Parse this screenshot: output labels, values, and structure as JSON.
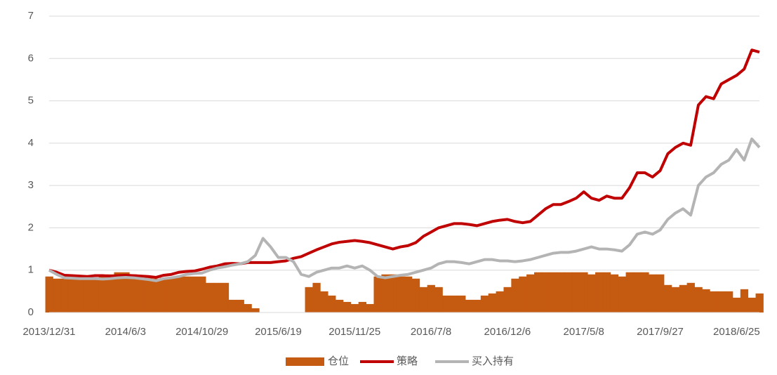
{
  "chart_data": {
    "type": "bar",
    "categories": [
      "2013/12/31",
      null,
      null,
      null,
      null,
      null,
      null,
      null,
      null,
      null,
      "2014/6/3",
      null,
      null,
      null,
      null,
      null,
      null,
      null,
      null,
      null,
      "2014/10/29",
      null,
      null,
      null,
      null,
      null,
      null,
      null,
      null,
      null,
      "2015/6/19",
      null,
      null,
      null,
      null,
      null,
      null,
      null,
      null,
      null,
      "2015/11/25",
      null,
      null,
      null,
      null,
      null,
      null,
      null,
      null,
      null,
      "2016/7/8",
      null,
      null,
      null,
      null,
      null,
      null,
      null,
      null,
      null,
      "2016/12/6",
      null,
      null,
      null,
      null,
      null,
      null,
      null,
      null,
      null,
      "2017/5/8",
      null,
      null,
      null,
      null,
      null,
      null,
      null,
      null,
      null,
      "2017/9/27",
      null,
      null,
      null,
      null,
      null,
      null,
      null,
      null,
      null,
      "2018/6/25",
      null,
      null,
      null
    ],
    "series": [
      {
        "name": "仓位",
        "type": "bar",
        "color": "#c55a11",
        "values": [
          0.85,
          0.8,
          0.8,
          0.8,
          0.8,
          0.85,
          0.8,
          0.85,
          0.9,
          0.95,
          0.95,
          0.9,
          0.82,
          0.82,
          0.8,
          0.82,
          0.82,
          0.85,
          0.85,
          0.85,
          0.85,
          0.7,
          0.7,
          0.7,
          0.3,
          0.3,
          0.2,
          0.1,
          0,
          0,
          0,
          0,
          0,
          0,
          0.6,
          0.7,
          0.5,
          0.4,
          0.3,
          0.25,
          0.2,
          0.25,
          0.2,
          0.85,
          0.9,
          0.9,
          0.85,
          0.85,
          0.8,
          0.6,
          0.65,
          0.6,
          0.4,
          0.4,
          0.4,
          0.3,
          0.3,
          0.4,
          0.45,
          0.5,
          0.6,
          0.8,
          0.85,
          0.9,
          0.95,
          0.95,
          0.95,
          0.95,
          0.95,
          0.95,
          0.95,
          0.9,
          0.95,
          0.95,
          0.9,
          0.85,
          0.95,
          0.95,
          0.95,
          0.9,
          0.9,
          0.65,
          0.6,
          0.65,
          0.7,
          0.6,
          0.55,
          0.5,
          0.5,
          0.5,
          0.35,
          0.55,
          0.35,
          0.45
        ]
      },
      {
        "name": "策略",
        "type": "line",
        "color": "#c00000",
        "values": [
          1.0,
          0.95,
          0.88,
          0.87,
          0.86,
          0.85,
          0.87,
          0.87,
          0.86,
          0.87,
          0.88,
          0.87,
          0.86,
          0.85,
          0.83,
          0.88,
          0.9,
          0.95,
          0.97,
          0.98,
          1.02,
          1.07,
          1.1,
          1.15,
          1.16,
          1.15,
          1.18,
          1.18,
          1.18,
          1.18,
          1.2,
          1.22,
          1.28,
          1.32,
          1.4,
          1.48,
          1.55,
          1.62,
          1.66,
          1.68,
          1.7,
          1.68,
          1.65,
          1.6,
          1.55,
          1.5,
          1.55,
          1.58,
          1.65,
          1.8,
          1.9,
          2.0,
          2.05,
          2.1,
          2.1,
          2.08,
          2.05,
          2.1,
          2.15,
          2.18,
          2.2,
          2.15,
          2.12,
          2.15,
          2.3,
          2.45,
          2.55,
          2.55,
          2.62,
          2.7,
          2.85,
          2.7,
          2.65,
          2.75,
          2.7,
          2.7,
          2.95,
          3.3,
          3.3,
          3.2,
          3.35,
          3.75,
          3.9,
          4.0,
          3.95,
          4.9,
          5.1,
          5.05,
          5.4,
          5.5,
          5.6,
          5.75,
          6.2,
          6.15
        ]
      },
      {
        "name": "买入持有",
        "type": "line",
        "color": "#b4b4b4",
        "values": [
          1.0,
          0.9,
          0.82,
          0.81,
          0.8,
          0.8,
          0.8,
          0.79,
          0.8,
          0.82,
          0.83,
          0.82,
          0.8,
          0.78,
          0.75,
          0.8,
          0.82,
          0.85,
          0.9,
          0.92,
          0.93,
          1.0,
          1.05,
          1.08,
          1.12,
          1.15,
          1.2,
          1.35,
          1.75,
          1.55,
          1.3,
          1.3,
          1.2,
          0.9,
          0.85,
          0.95,
          1.0,
          1.05,
          1.05,
          1.1,
          1.05,
          1.1,
          1.0,
          0.85,
          0.82,
          0.85,
          0.88,
          0.9,
          0.95,
          1.0,
          1.05,
          1.15,
          1.2,
          1.2,
          1.18,
          1.15,
          1.2,
          1.25,
          1.25,
          1.22,
          1.22,
          1.2,
          1.22,
          1.25,
          1.3,
          1.35,
          1.4,
          1.42,
          1.42,
          1.45,
          1.5,
          1.55,
          1.5,
          1.5,
          1.48,
          1.45,
          1.6,
          1.85,
          1.9,
          1.85,
          1.95,
          2.2,
          2.35,
          2.45,
          2.3,
          3.0,
          3.2,
          3.3,
          3.5,
          3.6,
          3.85,
          3.6,
          4.1,
          3.9
        ]
      }
    ],
    "ylim": [
      0,
      7
    ],
    "yticks": [
      0,
      1,
      2,
      3,
      4,
      5,
      6,
      7
    ],
    "grid": true,
    "legend": "bottom"
  }
}
